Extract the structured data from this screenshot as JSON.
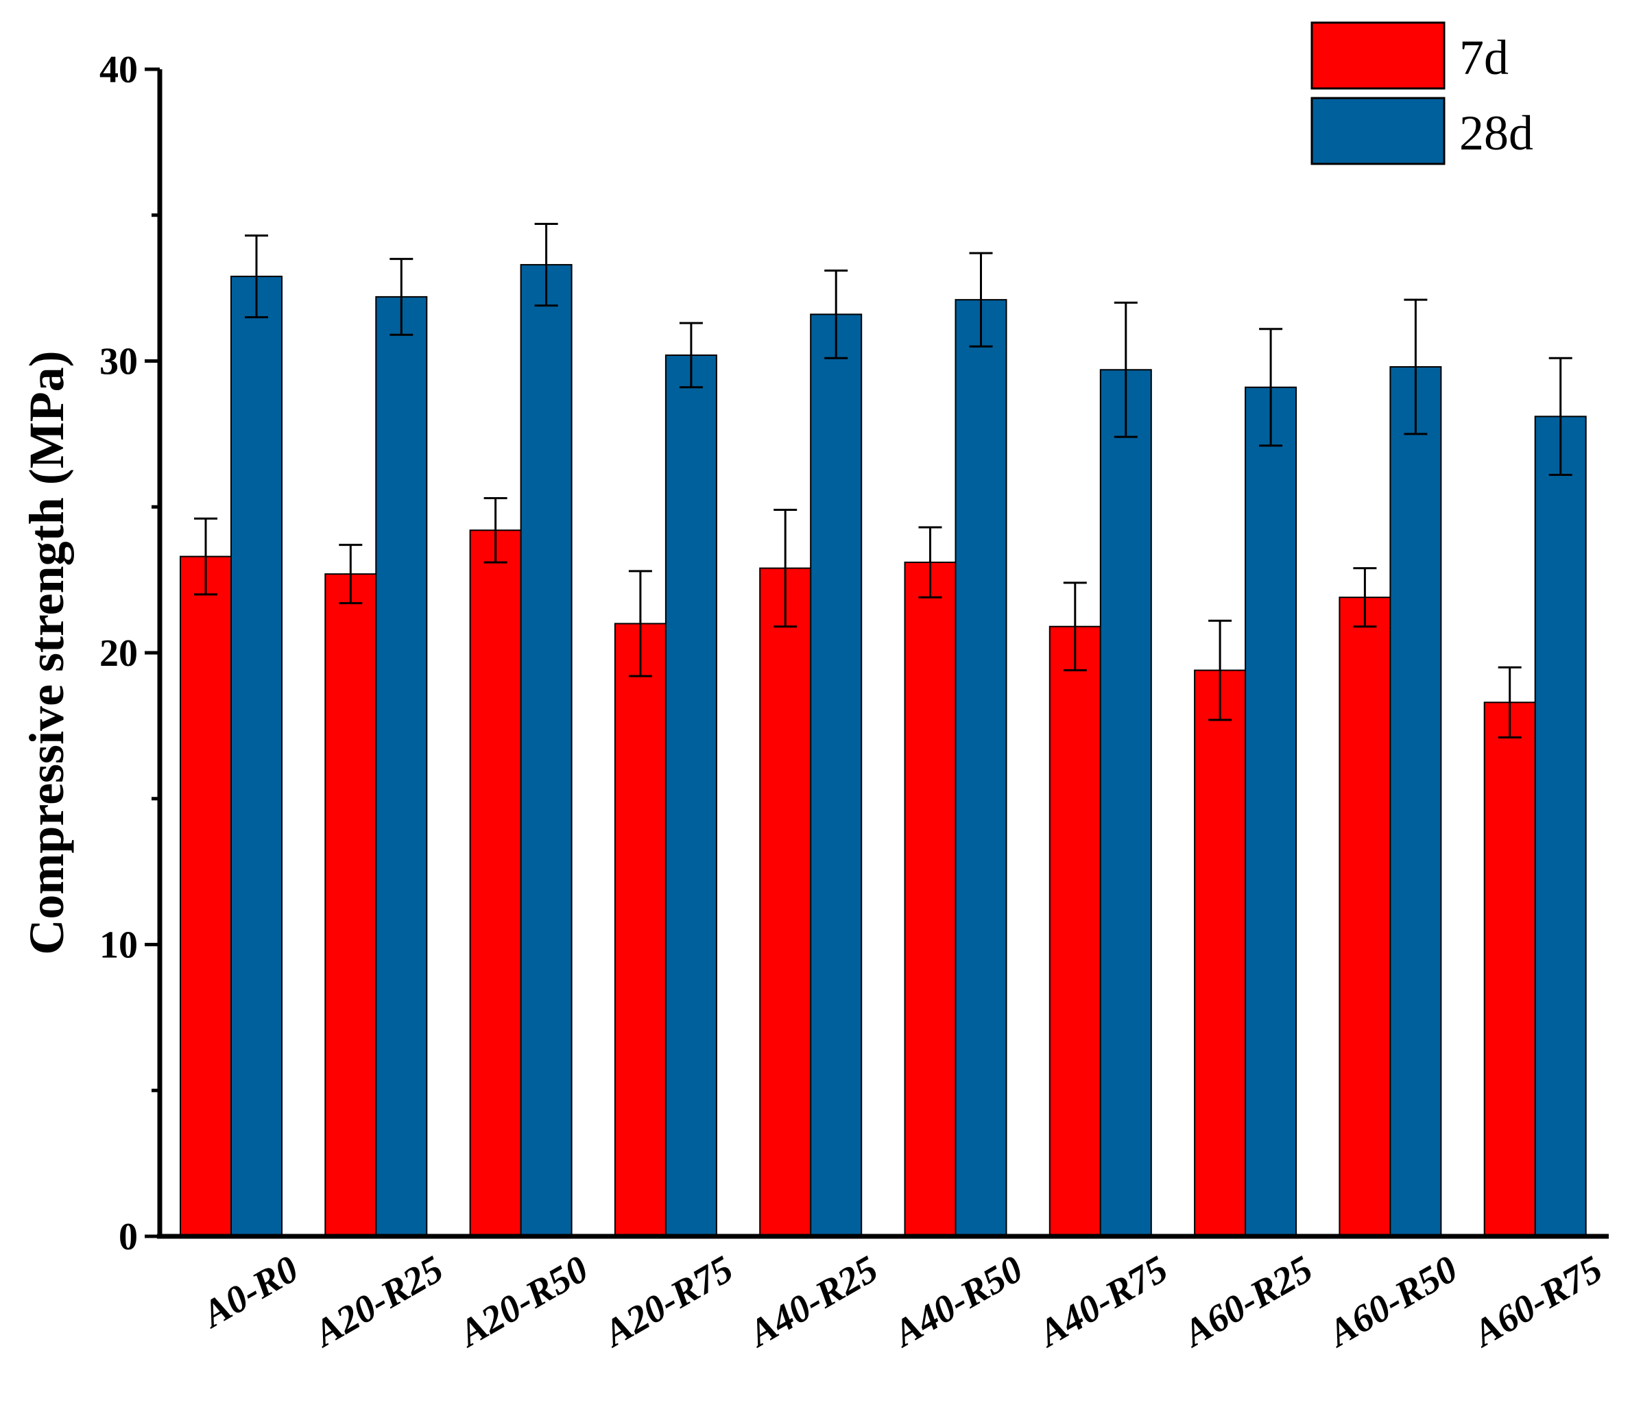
{
  "chart_data": {
    "type": "bar",
    "title": "",
    "xlabel": "",
    "ylabel": "Compressive strength (MPa)",
    "ylim": [
      0,
      40
    ],
    "yticks": [
      0,
      10,
      20,
      30,
      40
    ],
    "grid": false,
    "legend_position": "top-right",
    "categories": [
      "A0-R0",
      "A20-R25",
      "A20-R50",
      "A20-R75",
      "A40-R25",
      "A40-R50",
      "A40-R75",
      "A60-R25",
      "A60-R50",
      "A60-R75"
    ],
    "series": [
      {
        "name": "7d",
        "color": "#ff0000",
        "values": [
          23.3,
          22.7,
          24.2,
          21.0,
          22.9,
          23.1,
          20.9,
          19.4,
          21.9,
          18.3
        ],
        "errors": [
          1.3,
          1.0,
          1.1,
          1.8,
          2.0,
          1.2,
          1.5,
          1.7,
          1.0,
          1.2
        ]
      },
      {
        "name": "28d",
        "color": "#00609c",
        "values": [
          32.9,
          32.2,
          33.3,
          30.2,
          31.6,
          32.1,
          29.7,
          29.1,
          29.8,
          28.1
        ],
        "errors": [
          1.4,
          1.3,
          1.4,
          1.1,
          1.5,
          1.6,
          2.3,
          2.0,
          2.3,
          2.0
        ]
      }
    ]
  }
}
